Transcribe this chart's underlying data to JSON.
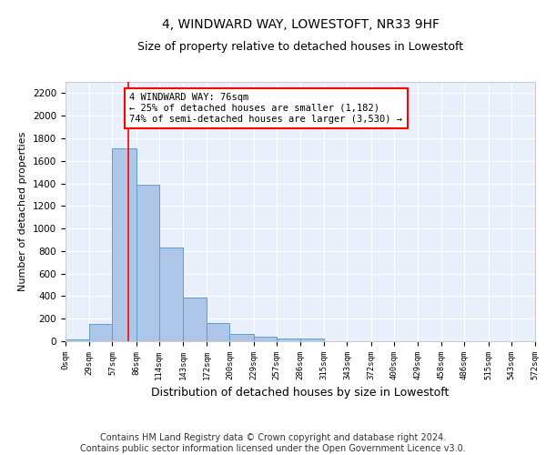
{
  "title": "4, WINDWARD WAY, LOWESTOFT, NR33 9HF",
  "subtitle": "Size of property relative to detached houses in Lowestoft",
  "xlabel": "Distribution of detached houses by size in Lowestoft",
  "ylabel": "Number of detached properties",
  "bar_edges": [
    0,
    29,
    57,
    86,
    114,
    143,
    172,
    200,
    229,
    257,
    286,
    315,
    343,
    372,
    400,
    429,
    458,
    486,
    515,
    543,
    572
  ],
  "bar_values": [
    20,
    155,
    1710,
    1390,
    835,
    385,
    165,
    65,
    38,
    28,
    28,
    0,
    0,
    0,
    0,
    0,
    0,
    0,
    0,
    0
  ],
  "bar_color": "#aec6e8",
  "bar_edge_color": "#5a9fd4",
  "property_line_x": 76,
  "property_line_color": "red",
  "annotation_text": "4 WINDWARD WAY: 76sqm\n← 25% of detached houses are smaller (1,182)\n74% of semi-detached houses are larger (3,530) →",
  "annotation_box_color": "white",
  "annotation_box_edge_color": "red",
  "ylim": [
    0,
    2300
  ],
  "yticks": [
    0,
    200,
    400,
    600,
    800,
    1000,
    1200,
    1400,
    1600,
    1800,
    2000,
    2200
  ],
  "tick_labels": [
    "0sqm",
    "29sqm",
    "57sqm",
    "86sqm",
    "114sqm",
    "143sqm",
    "172sqm",
    "200sqm",
    "229sqm",
    "257sqm",
    "286sqm",
    "315sqm",
    "343sqm",
    "372sqm",
    "400sqm",
    "429sqm",
    "458sqm",
    "486sqm",
    "515sqm",
    "543sqm",
    "572sqm"
  ],
  "footer_text": "Contains HM Land Registry data © Crown copyright and database right 2024.\nContains public sector information licensed under the Open Government Licence v3.0.",
  "background_color": "#eaf0fb",
  "grid_color": "white",
  "title_fontsize": 10,
  "subtitle_fontsize": 9,
  "xlabel_fontsize": 9,
  "ylabel_fontsize": 8,
  "footer_fontsize": 7,
  "annotation_fontsize": 7.5
}
